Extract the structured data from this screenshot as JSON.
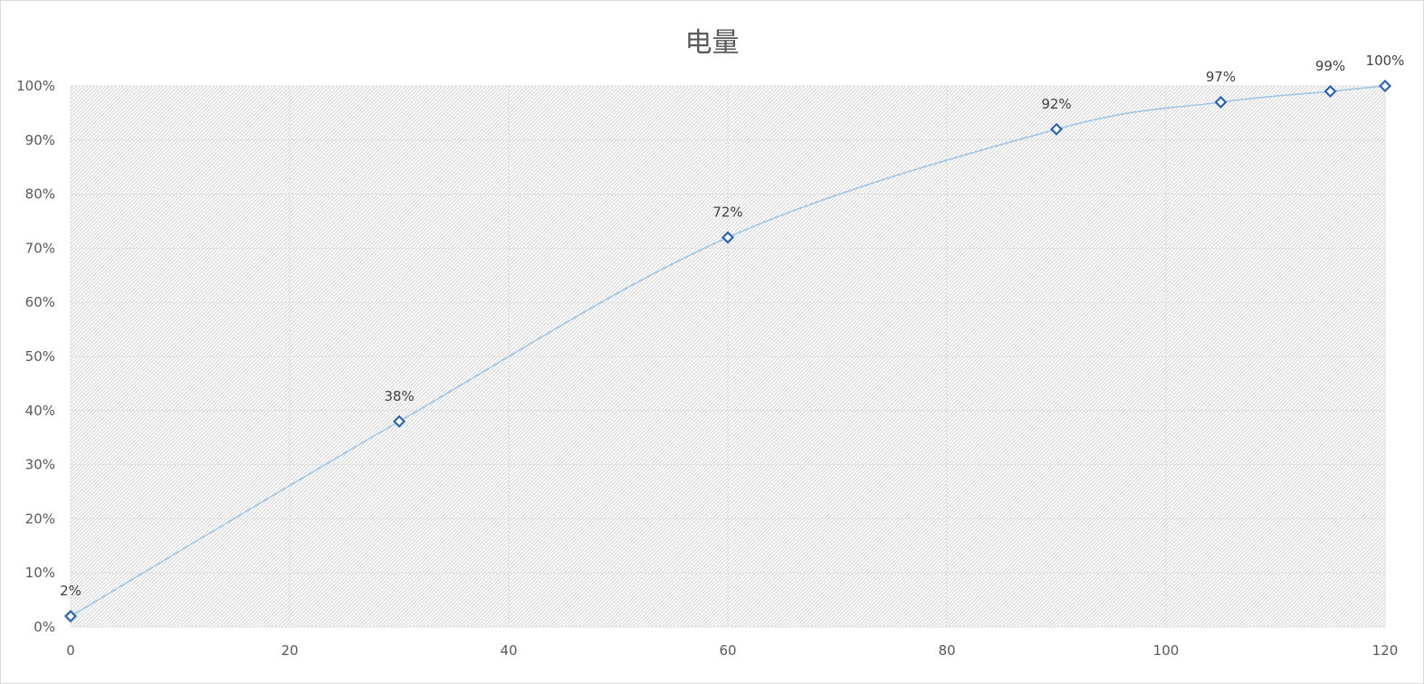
{
  "chart_data": {
    "type": "scatter",
    "title": "电量",
    "xlabel": "",
    "ylabel": "",
    "xlim": [
      0,
      120
    ],
    "ylim": [
      0,
      100
    ],
    "x_ticks": [
      "0",
      "20",
      "40",
      "60",
      "80",
      "100",
      "120"
    ],
    "y_ticks": [
      "0%",
      "10%",
      "20%",
      "30%",
      "40%",
      "50%",
      "60%",
      "70%",
      "80%",
      "90%",
      "100%"
    ],
    "grid": true,
    "smooth_line": true,
    "series": [
      {
        "x": [
          0,
          30,
          60,
          90,
          105,
          115,
          120
        ],
        "y": [
          2,
          38,
          72,
          92,
          97,
          99,
          100
        ],
        "labels": [
          "2%",
          "38%",
          "72%",
          "92%",
          "97%",
          "99%",
          "100%"
        ]
      }
    ],
    "colors": {
      "line": "#9dc3e6",
      "marker": "#2e63b0",
      "grid": "#e0e0e0",
      "hatch": "#d4d4d4"
    }
  }
}
